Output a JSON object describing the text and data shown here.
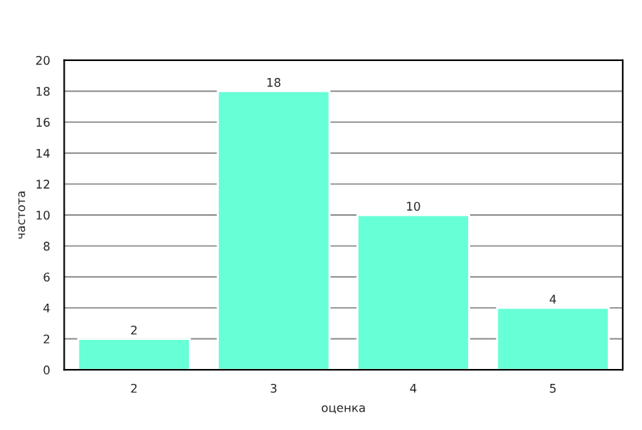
{
  "chart_data": {
    "type": "bar",
    "xlabel": "оценка",
    "ylabel": "частота",
    "categories": [
      "2",
      "3",
      "4",
      "5"
    ],
    "values": [
      2,
      18,
      10,
      4
    ],
    "color": "#66ffd6",
    "ylim": [
      0,
      20
    ],
    "yticks": [
      0,
      2,
      4,
      6,
      8,
      10,
      12,
      14,
      16,
      18,
      20
    ],
    "grid": "y",
    "data_labels": true
  }
}
